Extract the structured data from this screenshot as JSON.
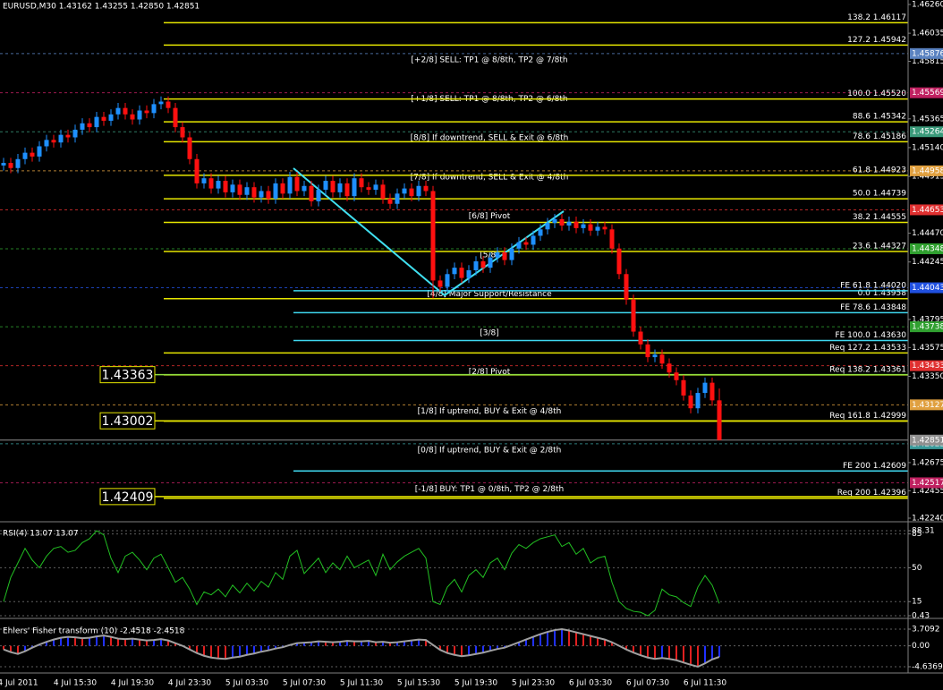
{
  "chart_data": [
    {
      "type": "candlestick",
      "title": "EURUSD,M30  1.43162 1.43255 1.42850 1.42851",
      "categories": [
        null,
        null,
        "4 Jul 2011",
        null,
        null,
        null,
        null,
        null,
        null,
        null,
        "4 Jul 15:30",
        null,
        null,
        null,
        null,
        null,
        null,
        null,
        "4 Jul 19:30",
        null,
        null,
        null,
        null,
        null,
        null,
        null,
        "4 Jul 23:30",
        null,
        null,
        null,
        null,
        null,
        null,
        null,
        "5 Jul 03:30",
        null,
        null,
        null,
        null,
        null,
        null,
        null,
        "5 Jul 07:30",
        null,
        null,
        null,
        null,
        null,
        null,
        null,
        "5 Jul 11:30",
        null,
        null,
        null,
        null,
        null,
        null,
        null,
        "5 Jul 15:30",
        null,
        null,
        null,
        null,
        null,
        null,
        null,
        "5 Jul 19:30",
        null,
        null,
        null,
        null,
        null,
        null,
        null,
        "5 Jul 23:30",
        null,
        null,
        null,
        null,
        null,
        null,
        null,
        "6 Jul 03:30",
        null,
        null,
        null,
        null,
        null,
        null,
        null,
        "6 Jul 07:30",
        null,
        null,
        null,
        null,
        null,
        null,
        null,
        "6 Jul 11:30",
        null,
        null
      ],
      "open": [
        1.45,
        1.4502,
        1.4498,
        1.4505,
        1.451,
        1.4507,
        1.4515,
        1.452,
        1.4518,
        1.4524,
        1.4522,
        1.4528,
        1.4533,
        1.453,
        1.4538,
        1.4535,
        1.454,
        1.4545,
        1.454,
        1.4536,
        1.4543,
        1.4541,
        1.4548,
        1.455,
        1.4545,
        1.453,
        1.4522,
        1.4505,
        1.4486,
        1.449,
        1.4482,
        1.4488,
        1.4479,
        1.4485,
        1.4477,
        1.4483,
        1.4475,
        1.448,
        1.4474,
        1.4486,
        1.4478,
        1.4491,
        1.448,
        1.4484,
        1.4472,
        1.4481,
        1.4488,
        1.4479,
        1.4486,
        1.4476,
        1.449,
        1.4483,
        1.4481,
        1.4485,
        1.4474,
        1.447,
        1.4478,
        1.4482,
        1.4476,
        1.4484,
        1.448,
        1.441,
        1.4405,
        1.4415,
        1.442,
        1.4412,
        1.4418,
        1.4425,
        1.442,
        1.4428,
        1.4432,
        1.4426,
        1.4435,
        1.444,
        1.4438,
        1.4445,
        1.445,
        1.4455,
        1.4458,
        1.4453,
        1.4456,
        1.4451,
        1.4454,
        1.4449,
        1.4452,
        1.445,
        1.4435,
        1.4415,
        1.4395,
        1.437,
        1.436,
        1.435,
        1.4352,
        1.4345,
        1.4338,
        1.4332,
        1.432,
        1.431,
        1.4322,
        1.433,
        1.43162
      ],
      "high": [
        1.4506,
        1.4506,
        1.4509,
        1.4514,
        1.4514,
        1.4519,
        1.4524,
        1.4524,
        1.4528,
        1.4528,
        1.4532,
        1.4537,
        1.4537,
        1.4542,
        1.4542,
        1.4544,
        1.4549,
        1.4549,
        1.4544,
        1.4547,
        1.4547,
        1.4552,
        1.4554,
        1.4554,
        1.4549,
        1.4534,
        1.4526,
        1.4509,
        1.4494,
        1.4494,
        1.4492,
        1.4492,
        1.4489,
        1.4489,
        1.4487,
        1.4487,
        1.4484,
        1.4484,
        1.449,
        1.449,
        1.4495,
        1.4495,
        1.4488,
        1.4488,
        1.4485,
        1.4492,
        1.4492,
        1.449,
        1.449,
        1.4494,
        1.4494,
        1.4487,
        1.4489,
        1.4489,
        1.4478,
        1.4482,
        1.4486,
        1.4486,
        1.4488,
        1.4488,
        1.4484,
        1.4414,
        1.4419,
        1.4424,
        1.4424,
        1.4422,
        1.4429,
        1.4429,
        1.4432,
        1.4436,
        1.4436,
        1.4439,
        1.4444,
        1.4444,
        1.4449,
        1.4454,
        1.4459,
        1.4462,
        1.4462,
        1.446,
        1.446,
        1.4458,
        1.4458,
        1.4456,
        1.4456,
        1.4454,
        1.4439,
        1.4419,
        1.4399,
        1.4374,
        1.4364,
        1.4356,
        1.4356,
        1.4349,
        1.4342,
        1.4336,
        1.4324,
        1.4326,
        1.4334,
        1.4334,
        1.43255
      ],
      "low": [
        1.4496,
        1.4494,
        1.4494,
        1.4501,
        1.4503,
        1.4503,
        1.4511,
        1.4514,
        1.4514,
        1.4518,
        1.4518,
        1.4524,
        1.4526,
        1.4526,
        1.4531,
        1.4531,
        1.4536,
        1.4536,
        1.4532,
        1.4532,
        1.4537,
        1.4537,
        1.4544,
        1.4541,
        1.4526,
        1.4518,
        1.4501,
        1.4482,
        1.4482,
        1.4478,
        1.4478,
        1.4475,
        1.4475,
        1.4473,
        1.4473,
        1.4471,
        1.4471,
        1.447,
        1.447,
        1.4474,
        1.4474,
        1.4476,
        1.4476,
        1.4468,
        1.4468,
        1.4477,
        1.4475,
        1.4475,
        1.4472,
        1.4472,
        1.4479,
        1.4477,
        1.4477,
        1.447,
        1.4466,
        1.4466,
        1.4474,
        1.4472,
        1.4472,
        1.4476,
        1.4396,
        1.4401,
        1.4401,
        1.4411,
        1.4408,
        1.4408,
        1.4414,
        1.4416,
        1.4416,
        1.4424,
        1.4422,
        1.4422,
        1.4431,
        1.4434,
        1.4434,
        1.4441,
        1.4446,
        1.4451,
        1.4449,
        1.4449,
        1.4447,
        1.4447,
        1.4445,
        1.4445,
        1.4446,
        1.4431,
        1.4411,
        1.4391,
        1.4366,
        1.4356,
        1.4346,
        1.4346,
        1.4341,
        1.4334,
        1.4328,
        1.4316,
        1.4306,
        1.4306,
        1.4318,
        1.4312,
        1.4285
      ],
      "close": [
        1.4502,
        1.4498,
        1.4505,
        1.451,
        1.4507,
        1.4515,
        1.452,
        1.4518,
        1.4524,
        1.4522,
        1.4528,
        1.4533,
        1.453,
        1.4538,
        1.4535,
        1.454,
        1.4545,
        1.454,
        1.4536,
        1.4543,
        1.4541,
        1.4548,
        1.455,
        1.4545,
        1.453,
        1.4522,
        1.4505,
        1.4486,
        1.449,
        1.4482,
        1.4488,
        1.4479,
        1.4485,
        1.4477,
        1.4483,
        1.4475,
        1.448,
        1.4474,
        1.4486,
        1.4478,
        1.4491,
        1.448,
        1.4484,
        1.4472,
        1.4481,
        1.4488,
        1.4479,
        1.4486,
        1.4476,
        1.449,
        1.4483,
        1.4481,
        1.4485,
        1.4474,
        1.447,
        1.4478,
        1.4482,
        1.4476,
        1.4484,
        1.448,
        1.441,
        1.4405,
        1.4415,
        1.442,
        1.4412,
        1.4418,
        1.4425,
        1.442,
        1.4428,
        1.4432,
        1.4426,
        1.4435,
        1.444,
        1.4438,
        1.4445,
        1.445,
        1.4455,
        1.4458,
        1.4453,
        1.4456,
        1.4451,
        1.4454,
        1.4449,
        1.4452,
        1.445,
        1.4435,
        1.4415,
        1.4395,
        1.437,
        1.436,
        1.435,
        1.4352,
        1.4345,
        1.4338,
        1.4332,
        1.432,
        1.431,
        1.4322,
        1.433,
        1.43162,
        1.42851
      ],
      "up_color": "#1e90ff",
      "down_color": "#ff1010",
      "ylim": [
        1.4224,
        1.4626
      ],
      "yticks": [
        {
          "value": 1.4626,
          "label": "1.46260"
        },
        1.46035,
        1.45815,
        1.45365,
        {
          "value": 1.4514,
          "label": "1.45140"
        },
        1.44915,
        {
          "value": 1.4447,
          "label": "1.44470"
        },
        1.44245,
        1.43795,
        1.43575,
        {
          "value": 1.4335,
          "label": "1.43350"
        },
        1.42675,
        1.42455,
        {
          "value": 1.4224,
          "label": "1.42240"
        }
      ],
      "grid": false,
      "fibo_color": "#e6e600",
      "fibo_levels": [
        {
          "text": "138.2 1.46117",
          "value": 1.46117
        },
        {
          "text": "127.2 1.45942",
          "value": 1.45942
        },
        {
          "text": "100.0 1.45520",
          "value": 1.4552
        },
        {
          "text": "88.6 1.45342",
          "value": 1.45342
        },
        {
          "text": "78.6 1.45186",
          "value": 1.45186
        },
        {
          "text": "61.8 1.44923",
          "value": 1.44923
        },
        {
          "text": "50.0 1.44739",
          "value": 1.44739
        },
        {
          "text": "38.2 1.44555",
          "value": 1.44555
        },
        {
          "text": "23.6 1.44327",
          "value": 1.44327
        },
        {
          "text": "0.0 1.43958",
          "value": 1.43958
        },
        {
          "text": "Req 127.2 1.43533",
          "value": 1.43533
        },
        {
          "text": "Req 138.2 1.43361",
          "value": 1.43361
        },
        {
          "text": "Req 161.8 1.42999",
          "value": 1.42999
        },
        {
          "text": "Req 200 1.42396",
          "value": 1.42396
        }
      ],
      "expansion_color": "#3fd8f0",
      "expansion_levels": [
        {
          "text": "FE 61.8 1.44020",
          "value": 1.4402
        },
        {
          "text": "FE 78.6 1.43848",
          "value": 1.43848
        },
        {
          "text": "FE 100.0 1.43630",
          "value": 1.4363
        },
        {
          "text": "FE 200 1.42609",
          "value": 1.42609
        }
      ],
      "murrey_levels": [
        {
          "text": "[+2/8] SELL: TP1 @ 8/8th, TP2 @ 7/8th",
          "value": 1.45876,
          "color": "#5a82c0"
        },
        {
          "text": "[+1/8] SELL: TP1 @ 8/8th, TP2 @ 6/8th",
          "value": 1.45569,
          "color": "#c02060"
        },
        {
          "text": "[8/8] If downtrend, SELL & Exit @ 6/8th",
          "value": 1.45264,
          "color": "#3a9a7a"
        },
        {
          "text": "[7/8] If downtrend, SELL & Exit @ 4/8th",
          "value": 1.44958,
          "color": "#e0a040"
        },
        {
          "text": "[6/8] Pivot",
          "value": 1.44653,
          "color": "#e03030"
        },
        {
          "text": "[5/8]",
          "value": 1.44348,
          "color": "#30a030"
        },
        {
          "text": "[4/8] Major Support/Resistance",
          "value": 1.44043,
          "color": "#2050e0"
        },
        {
          "text": "[3/8]",
          "value": 1.43738,
          "color": "#30a030"
        },
        {
          "text": "[2/8] Pivot",
          "value": 1.43433,
          "color": "#e03030"
        },
        {
          "text": "[1/8] If uptrend, BUY & Exit @ 4/8th",
          "value": 1.43127,
          "color": "#e0a040"
        },
        {
          "text": "[0/8] If uptrend, BUY & Exit @ 2/8th",
          "value": 1.42822,
          "color": "#3a9a9a"
        },
        {
          "text": "[-1/8] BUY: TP1 @ 0/8th, TP2 @ 2/8th",
          "value": 1.42517,
          "color": "#c02060"
        }
      ],
      "hlines": [
        {
          "value": 1.43363,
          "color": "#90e040"
        },
        {
          "value": 1.43002,
          "color": "#e6e600"
        },
        {
          "value": 1.42409,
          "color": "#e6e600"
        }
      ]
    },
    {
      "type": "line",
      "title": "RSI(4) 13.07 13.07",
      "values": [
        15,
        40,
        55,
        70,
        58,
        50,
        62,
        70,
        72,
        66,
        68,
        76,
        80,
        88.31,
        84,
        60,
        45,
        62,
        66,
        58,
        48,
        60,
        64,
        50,
        35,
        40,
        28,
        12,
        25,
        22,
        28,
        20,
        32,
        24,
        34,
        26,
        36,
        30,
        45,
        38,
        62,
        68,
        44,
        52,
        60,
        45,
        55,
        48,
        62,
        50,
        54,
        58,
        42,
        64,
        48,
        56,
        62,
        66,
        70,
        60,
        15,
        12,
        30,
        38,
        25,
        42,
        48,
        40,
        55,
        60,
        48,
        65,
        74,
        70,
        76,
        80,
        82,
        84,
        72,
        76,
        64,
        70,
        55,
        60,
        62,
        35,
        15,
        8,
        5,
        4,
        0.43,
        6,
        28,
        22,
        20,
        14,
        10,
        30,
        42,
        32,
        13.07
      ],
      "color": "#22c022",
      "ylim": [
        0.43,
        88.31
      ],
      "yticks": [
        88.31,
        85,
        50,
        15,
        0.43
      ],
      "grid": true
    },
    {
      "type": "bar",
      "title": "Ehlers' Fisher transform (10) -2.4518 -2.4518",
      "values": [
        -0.8,
        -1.4,
        -1.8,
        -1.2,
        -0.4,
        0.3,
        0.9,
        1.4,
        1.8,
        2.0,
        1.9,
        1.7,
        1.8,
        2.1,
        2.3,
        2.0,
        1.6,
        1.5,
        1.6,
        1.4,
        1.2,
        1.3,
        1.5,
        1.2,
        0.6,
        0.0,
        -0.8,
        -1.6,
        -2.2,
        -2.6,
        -2.8,
        -2.9,
        -2.6,
        -2.4,
        -2.0,
        -1.7,
        -1.3,
        -1.0,
        -0.6,
        -0.3,
        0.2,
        0.6,
        0.7,
        0.8,
        1.0,
        0.9,
        0.8,
        0.9,
        1.1,
        1.0,
        1.0,
        1.1,
        0.8,
        0.9,
        0.7,
        0.8,
        1.0,
        1.2,
        1.4,
        1.3,
        0.2,
        -0.9,
        -1.6,
        -2.0,
        -2.3,
        -2.1,
        -1.8,
        -1.5,
        -1.1,
        -0.7,
        -0.4,
        0.2,
        0.8,
        1.4,
        2.0,
        2.6,
        3.1,
        3.5,
        3.7092,
        3.4,
        3.0,
        2.6,
        2.2,
        1.8,
        1.4,
        0.8,
        0.0,
        -0.8,
        -1.5,
        -2.1,
        -2.6,
        -2.9,
        -2.7,
        -2.9,
        -3.2,
        -3.7,
        -4.2,
        -4.6369,
        -3.9,
        -3.0,
        -2.4518
      ],
      "up_color": "#2030ff",
      "down_color": "#e02020",
      "line_color": "#a0a0a0",
      "ylim": [
        -4.6369,
        3.7092
      ],
      "yticks": [
        3.7092,
        {
          "value": 0,
          "label": "0.00"
        },
        -4.6369
      ],
      "grid": true
    }
  ]
}
